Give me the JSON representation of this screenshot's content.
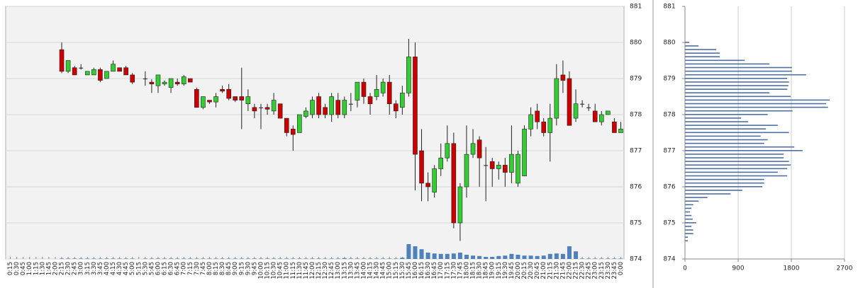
{
  "chart_data": [
    {
      "type": "candlestick",
      "categories": [
        "0:15",
        "0:30",
        "0:45",
        "1:00",
        "1:15",
        "1:30",
        "1:45",
        "2:00",
        "2:15",
        "2:30",
        "2:45",
        "3:00",
        "3:15",
        "3:30",
        "3:45",
        "4:00",
        "4:15",
        "4:30",
        "4:45",
        "5:00",
        "5:15",
        "5:30",
        "5:45",
        "6:00",
        "6:15",
        "6:30",
        "6:45",
        "7:00",
        "7:15",
        "7:30",
        "7:45",
        "8:00",
        "8:15",
        "8:30",
        "8:45",
        "9:00",
        "9:15",
        "9:30",
        "9:45",
        "10:00",
        "10:15",
        "10:30",
        "10:45",
        "11:00",
        "11:15",
        "11:30",
        "11:45",
        "12:00",
        "12:15",
        "12:30",
        "12:45",
        "13:00",
        "13:15",
        "13:30",
        "13:45",
        "14:00",
        "14:15",
        "14:30",
        "14:45",
        "15:00",
        "15:15",
        "15:30",
        "15:45",
        "16:00",
        "16:15",
        "16:30",
        "16:45",
        "17:00",
        "17:15",
        "17:30",
        "17:45",
        "18:00",
        "18:15",
        "18:30",
        "18:45",
        "19:00",
        "19:15",
        "19:30",
        "19:45",
        "20:00",
        "20:15",
        "20:30",
        "20:45",
        "21:00",
        "21:15",
        "21:30",
        "21:45",
        "22:00",
        "22:15",
        "22:30",
        "22:45",
        "23:00",
        "23:15",
        "23:30",
        "23:45",
        "0:00"
      ],
      "open": [
        null,
        null,
        null,
        null,
        null,
        null,
        null,
        null,
        879.8,
        879.2,
        879.3,
        879.3,
        879.1,
        879.1,
        879.25,
        879.0,
        879.2,
        879.3,
        879.3,
        879.1,
        null,
        879.0,
        878.9,
        878.8,
        878.85,
        878.75,
        878.9,
        878.85,
        879.0,
        878.7,
        878.2,
        878.4,
        878.35,
        878.7,
        878.7,
        878.5,
        878.5,
        878.3,
        878.2,
        878.2,
        878.2,
        878.1,
        878.3,
        877.9,
        877.6,
        877.5,
        877.95,
        878.0,
        878.5,
        878.2,
        878.0,
        878.4,
        878.0,
        878.3,
        878.4,
        878.9,
        878.5,
        878.5,
        878.6,
        878.9,
        878.3,
        878.2,
        878.6,
        879.6,
        877.0,
        876.1,
        875.85,
        876.5,
        876.8,
        877.2,
        875.0,
        876.0,
        876.9,
        877.3,
        876.6,
        876.7,
        876.5,
        876.6,
        876.4,
        876.1,
        876.3,
        877.6,
        878.1,
        877.8,
        877.5,
        877.9,
        879.1,
        879.0,
        877.9,
        878.3,
        878.2,
        878.1,
        877.8,
        878.0,
        877.8,
        877.5
      ],
      "high": [
        null,
        null,
        null,
        null,
        null,
        null,
        null,
        null,
        880.0,
        879.5,
        879.35,
        879.4,
        879.2,
        879.3,
        879.3,
        879.2,
        879.5,
        879.3,
        879.35,
        879.15,
        null,
        879.2,
        878.98,
        879.1,
        878.95,
        879.0,
        879.0,
        879.1,
        879.0,
        878.75,
        878.5,
        878.4,
        878.6,
        878.8,
        878.85,
        878.5,
        879.3,
        878.7,
        878.3,
        878.3,
        878.3,
        878.6,
        878.3,
        877.9,
        877.7,
        878.0,
        878.2,
        878.5,
        878.6,
        878.3,
        878.6,
        878.6,
        878.5,
        878.6,
        878.9,
        879.0,
        878.6,
        879.1,
        879.0,
        879.1,
        878.4,
        878.8,
        880.1,
        880.0,
        877.6,
        876.4,
        876.6,
        877.2,
        877.7,
        877.5,
        876.1,
        877.7,
        877.6,
        877.4,
        877.1,
        876.8,
        876.7,
        876.8,
        877.7,
        877.0,
        877.7,
        878.2,
        878.3,
        877.9,
        878.3,
        879.4,
        879.5,
        879.2,
        878.7,
        878.4,
        878.3,
        878.3,
        878.1,
        878.1,
        877.9,
        877.8
      ],
      "low": [
        null,
        null,
        null,
        null,
        null,
        null,
        null,
        null,
        879.15,
        879.15,
        879.1,
        879.25,
        879.1,
        879.1,
        878.9,
        879.0,
        879.2,
        879.2,
        879.1,
        878.85,
        null,
        878.8,
        878.6,
        878.6,
        878.8,
        878.6,
        878.8,
        878.8,
        878.9,
        878.2,
        878.15,
        878.3,
        878.2,
        878.6,
        878.4,
        878.35,
        877.6,
        878.1,
        877.9,
        877.6,
        878.0,
        878.0,
        877.9,
        877.4,
        877.0,
        877.5,
        877.9,
        877.9,
        877.9,
        877.9,
        877.8,
        877.9,
        877.9,
        878.1,
        878.2,
        878.3,
        878.0,
        878.4,
        878.5,
        878.0,
        877.9,
        878.0,
        878.5,
        875.9,
        875.6,
        875.6,
        875.7,
        876.3,
        876.7,
        874.85,
        874.5,
        875.7,
        876.8,
        876.0,
        875.6,
        876.0,
        876.2,
        876.0,
        876.1,
        876.0,
        876.3,
        877.4,
        877.6,
        877.4,
        876.7,
        877.7,
        878.6,
        877.7,
        877.8,
        878.2,
        878.1,
        877.8,
        877.7,
        878.0,
        877.5,
        877.5
      ],
      "close": [
        null,
        null,
        null,
        null,
        null,
        null,
        null,
        null,
        879.2,
        879.5,
        879.1,
        879.3,
        879.2,
        879.25,
        878.95,
        879.2,
        879.4,
        879.2,
        879.1,
        878.9,
        null,
        879.0,
        878.85,
        879.1,
        878.9,
        879.0,
        878.85,
        879.05,
        878.9,
        878.2,
        878.5,
        878.35,
        878.5,
        878.65,
        878.45,
        878.4,
        878.4,
        878.5,
        878.1,
        878.2,
        878.15,
        878.4,
        877.9,
        877.5,
        877.45,
        878.0,
        878.1,
        878.4,
        878.0,
        878.0,
        878.5,
        878.0,
        878.4,
        878.3,
        878.9,
        878.5,
        878.3,
        878.7,
        878.9,
        878.3,
        878.1,
        878.6,
        879.6,
        876.9,
        876.1,
        876.0,
        876.5,
        876.8,
        877.2,
        875.0,
        876.0,
        876.9,
        877.2,
        876.8,
        876.6,
        876.5,
        876.6,
        876.4,
        876.9,
        876.9,
        877.6,
        878.0,
        877.8,
        877.5,
        877.9,
        879.0,
        878.95,
        877.7,
        878.3,
        878.3,
        878.2,
        877.8,
        878.0,
        878.1,
        877.5,
        877.6
      ],
      "volume": [
        null,
        null,
        null,
        null,
        null,
        null,
        null,
        null,
        1,
        1,
        1,
        1,
        1,
        1,
        1,
        1,
        1,
        1,
        1,
        1,
        null,
        1,
        1,
        1,
        1,
        1,
        1,
        1,
        1,
        1,
        1,
        1,
        1,
        1,
        1,
        1,
        1,
        1,
        1,
        1,
        1,
        1,
        1,
        1,
        1,
        1,
        1,
        1,
        1,
        1,
        1,
        1,
        2,
        1,
        1,
        1,
        1,
        1,
        1,
        1,
        1,
        3,
        35,
        30,
        23,
        15,
        13,
        12,
        12,
        13,
        15,
        10,
        8,
        7,
        5,
        5,
        7,
        8,
        12,
        10,
        8,
        8,
        7,
        8,
        12,
        13,
        12,
        30,
        18,
        1,
        1,
        1,
        1,
        1,
        1,
        1
      ],
      "up_color": "#33cc33",
      "down_color": "#cc0000",
      "volume_color": "#4f81bd",
      "ylim": [
        874,
        881
      ],
      "yticks": [
        874,
        875,
        876,
        877,
        878,
        879,
        880,
        881
      ],
      "grid": true
    },
    {
      "type": "hbar",
      "y": [
        880.0,
        879.9,
        879.8,
        879.7,
        879.6,
        879.5,
        879.4,
        879.3,
        879.2,
        879.1,
        879.0,
        878.9,
        878.8,
        878.7,
        878.6,
        878.5,
        878.4,
        878.3,
        878.2,
        878.1,
        878.0,
        877.9,
        877.8,
        877.7,
        877.6,
        877.5,
        877.4,
        877.3,
        877.2,
        877.1,
        877.0,
        876.9,
        876.8,
        876.7,
        876.6,
        876.5,
        876.4,
        876.3,
        876.2,
        876.1,
        876.0,
        875.9,
        875.8,
        875.7,
        875.6,
        875.5,
        875.4,
        875.3,
        875.2,
        875.1,
        875.0,
        874.9,
        874.8,
        874.7,
        874.6,
        874.5
      ],
      "values": [
        72,
        230,
        530,
        590,
        590,
        1010,
        1430,
        1810,
        1810,
        2050,
        1730,
        1760,
        1750,
        1730,
        1430,
        1790,
        2450,
        2390,
        2420,
        1820,
        1400,
        950,
        1070,
        1570,
        1370,
        1760,
        1280,
        1400,
        1340,
        1850,
        1990,
        1670,
        1670,
        1760,
        1790,
        1730,
        1570,
        1730,
        1340,
        1340,
        1310,
        970,
        770,
        380,
        230,
        140,
        110,
        85,
        110,
        130,
        190,
        110,
        140,
        140,
        50,
        50
      ],
      "color": "#4f6fa0",
      "xlim": [
        0,
        2700
      ],
      "xticks": [
        0,
        900,
        1800,
        2700
      ],
      "ylim": [
        874,
        881
      ],
      "yticks": [
        874,
        875,
        876,
        877,
        878,
        879,
        880,
        881
      ],
      "grid": true
    }
  ]
}
